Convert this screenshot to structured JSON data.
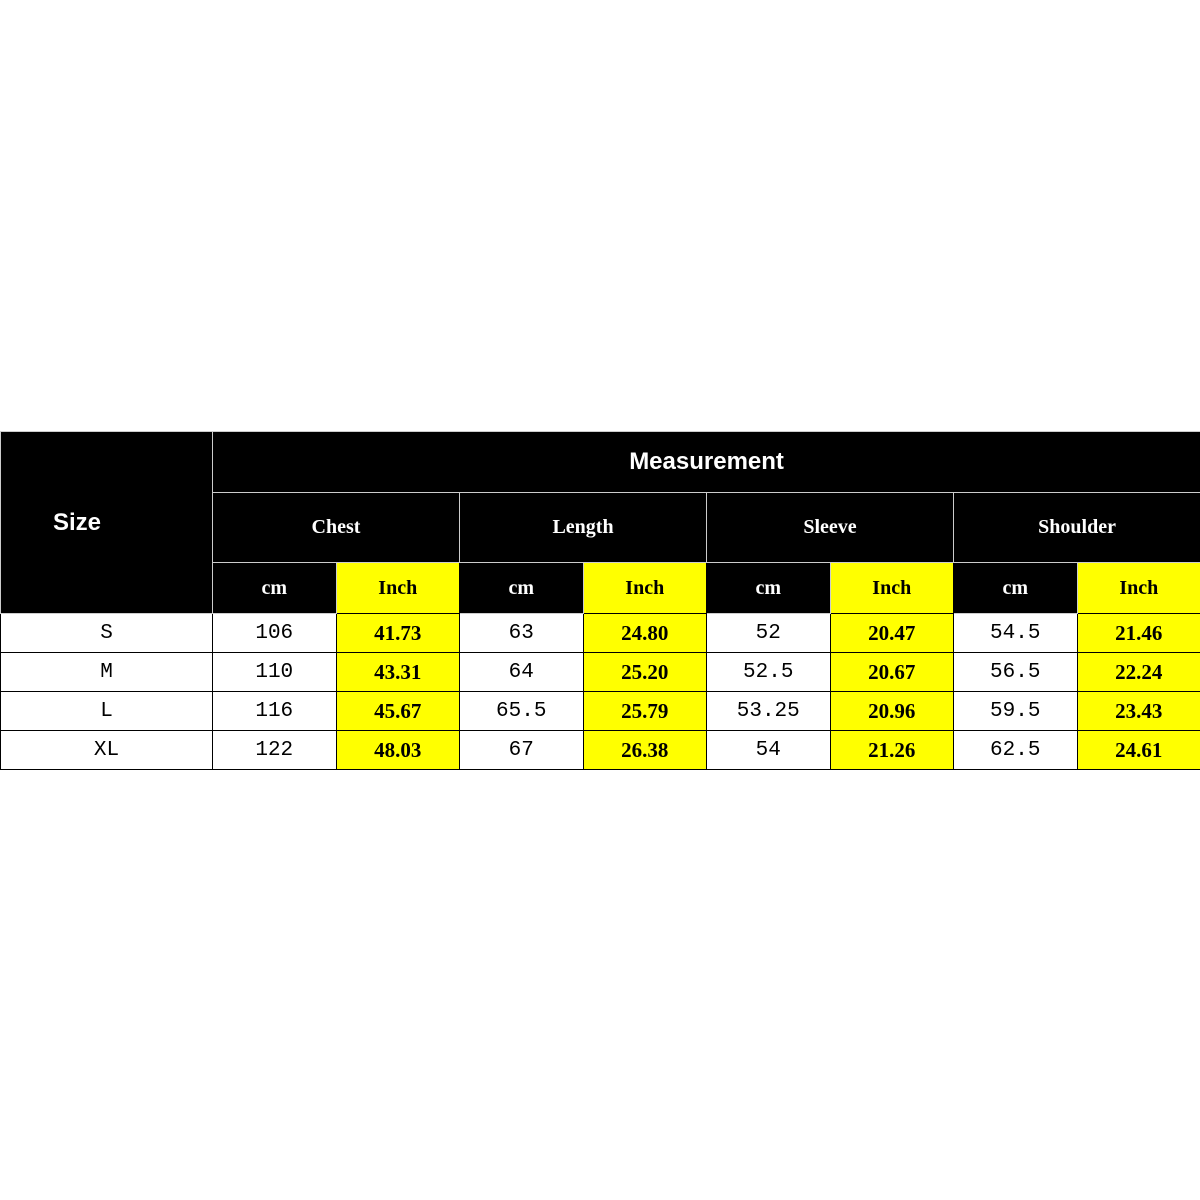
{
  "size_label": "Size",
  "measurement_label": "Measurement",
  "groups": [
    "Chest",
    "Length",
    "Sleeve",
    "Shoulder"
  ],
  "units": {
    "cm": "cm",
    "inch": "Inch"
  },
  "colors": {
    "header": "#000000",
    "highlight": "#ffff00"
  },
  "rows": [
    {
      "size": "S",
      "values": [
        "106",
        "41.73",
        "63",
        "24.80",
        "52",
        "20.47",
        "54.5",
        "21.46"
      ]
    },
    {
      "size": "M",
      "values": [
        "110",
        "43.31",
        "64",
        "25.20",
        "52.5",
        "20.67",
        "56.5",
        "22.24"
      ]
    },
    {
      "size": "L",
      "values": [
        "116",
        "45.67",
        "65.5",
        "25.79",
        "53.25",
        "20.96",
        "59.5",
        "23.43"
      ]
    },
    {
      "size": "XL",
      "values": [
        "122",
        "48.03",
        "67",
        "26.38",
        "54",
        "21.26",
        "62.5",
        "24.61"
      ]
    }
  ]
}
